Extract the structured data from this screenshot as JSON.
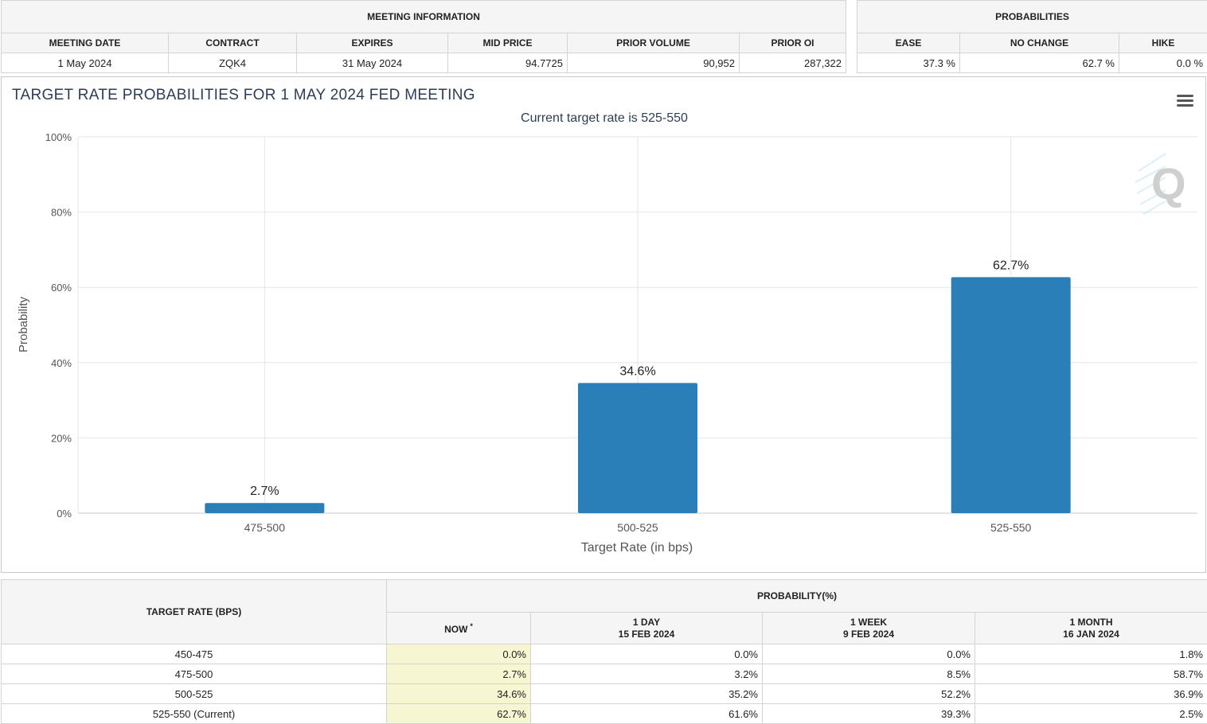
{
  "meeting_info": {
    "group_title": "MEETING INFORMATION",
    "headers": [
      "MEETING DATE",
      "CONTRACT",
      "EXPIRES",
      "MID PRICE",
      "PRIOR VOLUME",
      "PRIOR OI"
    ],
    "values": [
      "1 May 2024",
      "ZQK4",
      "31 May 2024",
      "94.7725",
      "90,952",
      "287,322"
    ]
  },
  "probabilities": {
    "group_title": "PROBABILITIES",
    "headers": [
      "EASE",
      "NO CHANGE",
      "HIKE"
    ],
    "values": [
      "37.3 %",
      "62.7 %",
      "0.0 %"
    ]
  },
  "chart_data": {
    "type": "bar",
    "title": "TARGET RATE PROBABILITIES FOR 1 MAY 2024 FED MEETING",
    "subtitle": "Current target rate is 525-550",
    "xlabel": "Target Rate (in bps)",
    "ylabel": "Probability",
    "categories": [
      "475-500",
      "500-525",
      "525-550"
    ],
    "values": [
      2.7,
      34.6,
      62.7
    ],
    "data_labels": [
      "2.7%",
      "34.6%",
      "62.7%"
    ],
    "ylim": [
      0,
      100
    ],
    "yticks": [
      0,
      20,
      40,
      60,
      80,
      100
    ],
    "ytick_labels": [
      "0%",
      "20%",
      "40%",
      "60%",
      "80%",
      "100%"
    ],
    "grid": true,
    "bar_color": "#2b7fb8",
    "menu_icon": "hamburger-menu-icon",
    "watermark_letter": "Q"
  },
  "history": {
    "row_header": "TARGET RATE (BPS)",
    "group_title": "PROBABILITY(%)",
    "columns": [
      {
        "line1": "NOW",
        "line2": "",
        "mark": "*"
      },
      {
        "line1": "1 DAY",
        "line2": "15 FEB 2024",
        "mark": ""
      },
      {
        "line1": "1 WEEK",
        "line2": "9 FEB 2024",
        "mark": ""
      },
      {
        "line1": "1 MONTH",
        "line2": "16 JAN 2024",
        "mark": ""
      }
    ],
    "rows": [
      {
        "rate": "450-475",
        "cells": [
          "0.0%",
          "0.0%",
          "0.0%",
          "1.8%"
        ]
      },
      {
        "rate": "475-500",
        "cells": [
          "2.7%",
          "3.2%",
          "8.5%",
          "58.7%"
        ]
      },
      {
        "rate": "500-525",
        "cells": [
          "34.6%",
          "35.2%",
          "52.2%",
          "36.9%"
        ]
      },
      {
        "rate": "525-550 (Current)",
        "cells": [
          "62.7%",
          "61.6%",
          "39.3%",
          "2.5%"
        ]
      }
    ],
    "now_highlight": "#f7f6d2"
  }
}
